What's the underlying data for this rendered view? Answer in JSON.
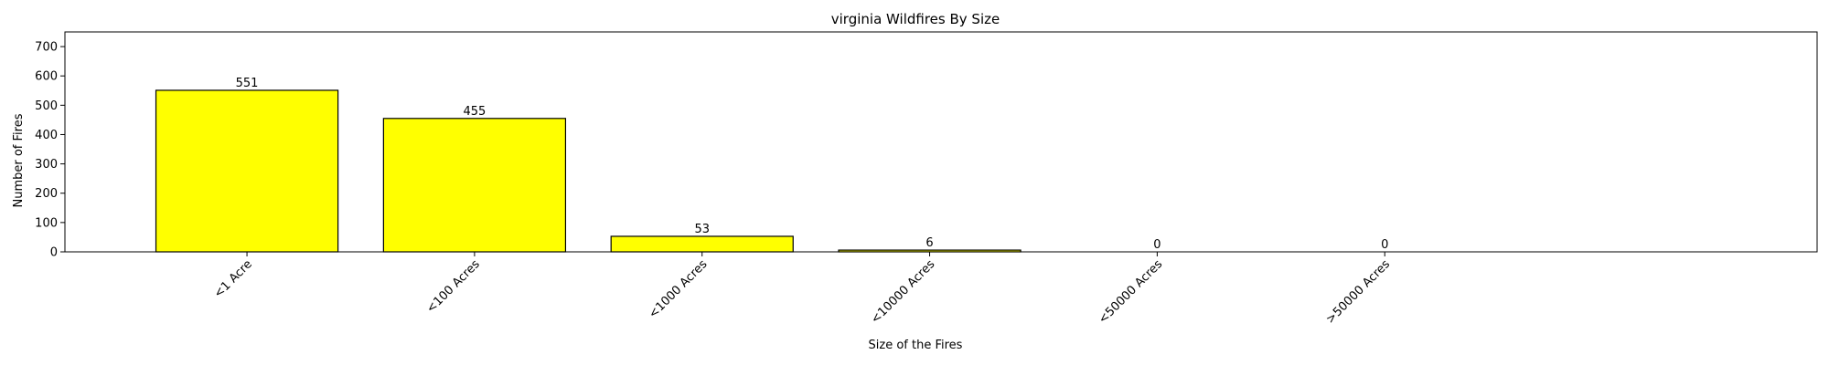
{
  "chart_data": {
    "type": "bar",
    "title": "virginia Wildfires By Size",
    "xlabel": "Size of the Fires",
    "ylabel": "Number of Fires",
    "categories": [
      "<1 Acre",
      "<100 Acres",
      "<1000 Acres",
      "<10000 Acres",
      "<50000 Acres",
      ">50000 Acres"
    ],
    "values": [
      551,
      455,
      53,
      6,
      0,
      0
    ],
    "data_labels": [
      "551",
      "455",
      "53",
      "6",
      "0",
      "0"
    ],
    "ylim": [
      0,
      750
    ],
    "yticks": [
      0,
      100,
      200,
      300,
      400,
      500,
      600,
      700
    ],
    "ytick_labels": [
      "0",
      "100",
      "200",
      "300",
      "400",
      "500",
      "600",
      "700"
    ],
    "grid": false,
    "bar_color": "#ffff00",
    "edge_color": "#000000"
  }
}
